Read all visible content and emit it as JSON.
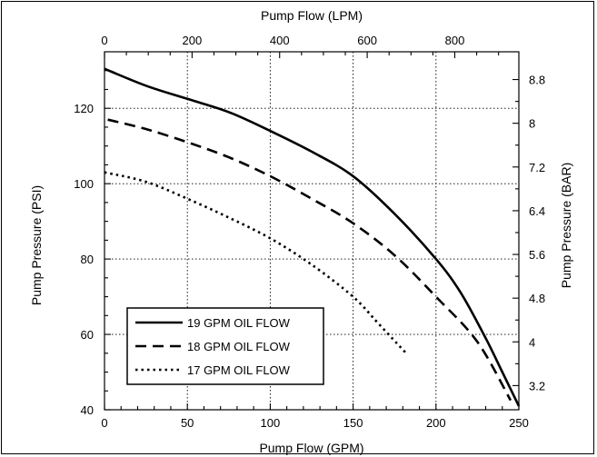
{
  "chart_data": {
    "type": "line",
    "x": {
      "label": "Pump Flow (GPM)",
      "ticks": [
        0,
        50,
        100,
        150,
        200,
        250
      ],
      "range": [
        0,
        250
      ]
    },
    "x2": {
      "label": "Pump Flow (LPM)",
      "ticks": [
        0,
        200,
        400,
        600,
        800
      ],
      "tick_labels": [
        "0",
        "200",
        "400",
        "600",
        "800"
      ]
    },
    "y": {
      "label": "Pump Pressure (PSI)",
      "ticks": [
        40,
        60,
        80,
        100,
        120
      ],
      "range": [
        40,
        135
      ]
    },
    "y2": {
      "label": "Pump Pressure (BAR)",
      "ticks": [
        3.2,
        4,
        4.8,
        5.6,
        6.4,
        7.2,
        8,
        8.8
      ],
      "tick_labels": [
        "3.2",
        "4",
        "4.8",
        "5.6",
        "6.4",
        "7.2",
        "8",
        "8.8"
      ]
    },
    "grid": true,
    "series": [
      {
        "name": "19 GPM OIL FLOW",
        "style": "solid",
        "points": [
          [
            0,
            130.5
          ],
          [
            25,
            126
          ],
          [
            50,
            122.5
          ],
          [
            75,
            119
          ],
          [
            100,
            114
          ],
          [
            125,
            108.5
          ],
          [
            150,
            102
          ],
          [
            175,
            92
          ],
          [
            200,
            80
          ],
          [
            215,
            71
          ],
          [
            230,
            59
          ],
          [
            240,
            50
          ],
          [
            250,
            41
          ]
        ]
      },
      {
        "name": "18 GPM OIL FLOW",
        "style": "dashed",
        "points": [
          [
            2,
            117
          ],
          [
            25,
            114.5
          ],
          [
            50,
            111
          ],
          [
            75,
            107
          ],
          [
            100,
            102
          ],
          [
            125,
            96
          ],
          [
            150,
            89.5
          ],
          [
            175,
            81
          ],
          [
            200,
            70
          ],
          [
            225,
            58
          ],
          [
            245,
            42.5
          ]
        ]
      },
      {
        "name": "17 GPM OIL FLOW",
        "style": "dotted",
        "points": [
          [
            0,
            103
          ],
          [
            25,
            100.5
          ],
          [
            50,
            96
          ],
          [
            75,
            91
          ],
          [
            100,
            85.5
          ],
          [
            125,
            78.5
          ],
          [
            150,
            70
          ],
          [
            165,
            63
          ],
          [
            182,
            55
          ]
        ]
      }
    ],
    "legend": {
      "position": "bottom-left",
      "entries": [
        "19 GPM OIL FLOW",
        "18 GPM OIL FLOW",
        "17 GPM OIL FLOW"
      ]
    },
    "colors": {
      "lines": "#000000",
      "grid": "#000000",
      "background": "#ffffff"
    }
  }
}
